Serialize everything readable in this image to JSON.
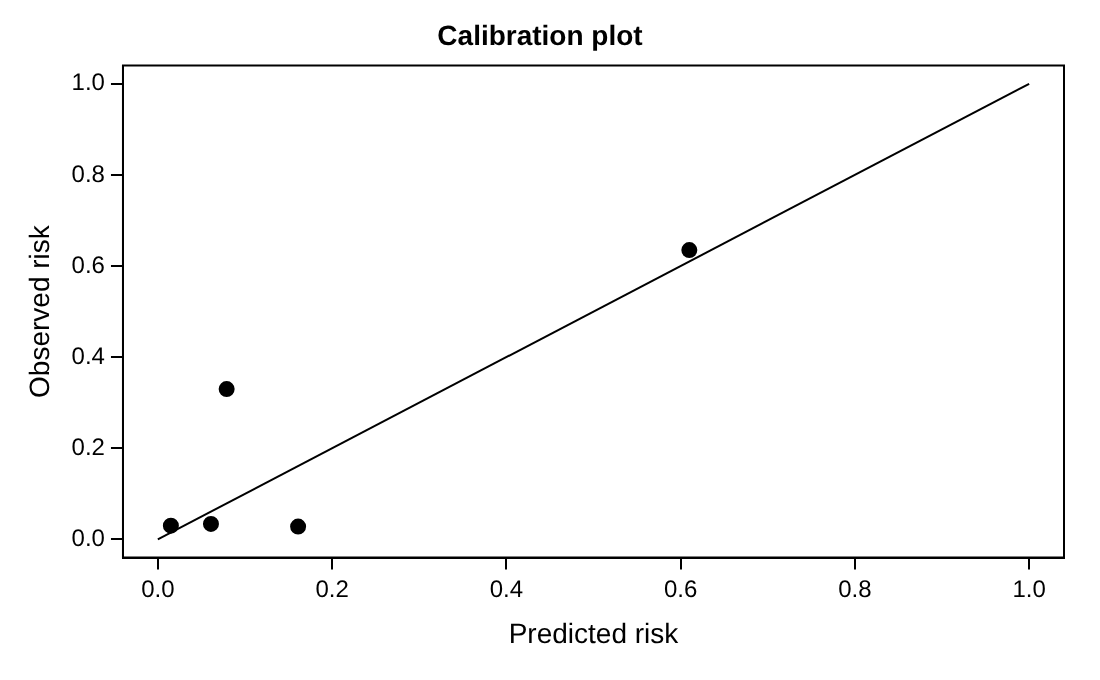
{
  "chart_data": {
    "type": "scatter",
    "title": "Calibration plot",
    "xlabel": "Predicted risk",
    "ylabel": "Observed risk",
    "xlim": [
      -0.04,
      1.04
    ],
    "ylim": [
      -0.04,
      1.04
    ],
    "xticks": [
      {
        "value": 0,
        "label": "0.0"
      },
      0.2,
      0.4,
      0.6,
      0.8,
      {
        "value": 1,
        "label": "1.0"
      }
    ],
    "yticks": [
      {
        "value": 0,
        "label": "0.0"
      },
      0.2,
      0.4,
      0.6,
      0.8,
      {
        "value": 1,
        "label": "1.0"
      }
    ],
    "marker": "circle",
    "grid": false,
    "legend": false,
    "series": [
      {
        "color": "#000000",
        "x": [
          0.015,
          0.061,
          0.079,
          0.161,
          0.61
        ],
        "values": [
          0.03,
          0.034,
          0.33,
          0.028,
          0.635
        ]
      },
      {
        "type": "line",
        "marker": "none",
        "color": "#000000",
        "x": [
          0,
          1
        ],
        "values": [
          0,
          1
        ]
      }
    ]
  }
}
